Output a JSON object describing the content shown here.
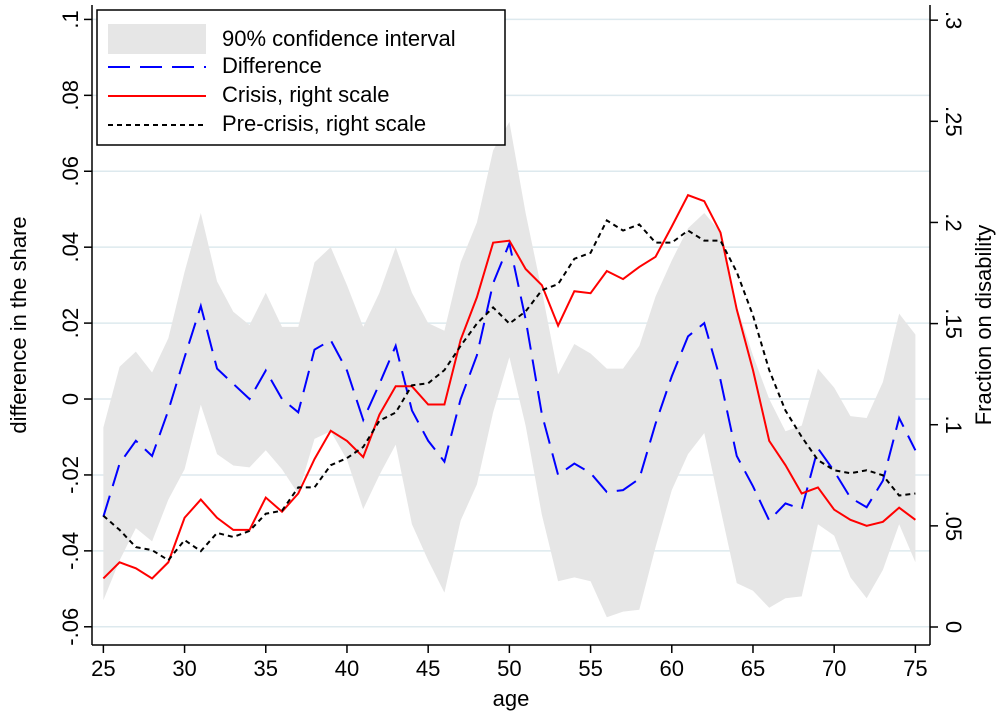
{
  "chart_data": {
    "type": "line",
    "xlabel": "age",
    "ylabel": "difference in the share",
    "y2label": "Fraction on disability",
    "ylabel_color": "#0000ff",
    "x": [
      25,
      26,
      27,
      28,
      29,
      30,
      31,
      32,
      33,
      34,
      35,
      36,
      37,
      38,
      39,
      40,
      41,
      42,
      43,
      44,
      45,
      46,
      47,
      48,
      49,
      50,
      51,
      52,
      53,
      54,
      55,
      56,
      57,
      58,
      59,
      60,
      61,
      62,
      63,
      64,
      65,
      66,
      67,
      68,
      69,
      70,
      71,
      72,
      73,
      74,
      75
    ],
    "xlim": [
      24.3,
      75.9
    ],
    "xticks": [
      25,
      30,
      35,
      40,
      45,
      50,
      55,
      60,
      65,
      70,
      75
    ],
    "ylim": [
      -0.0648,
      0.1038
    ],
    "yticks": [
      {
        "value": -0.06,
        "label": "-.06"
      },
      {
        "value": -0.04,
        "label": "-.04"
      },
      {
        "value": -0.02,
        "label": "-.02"
      },
      0,
      {
        "value": 0.02,
        "label": ".02"
      },
      {
        "value": 0.04,
        "label": ".04"
      },
      {
        "value": 0.06,
        "label": ".06"
      },
      {
        "value": 0.08,
        "label": ".08"
      },
      {
        "value": 0.1,
        "label": ".1"
      }
    ],
    "y2lim": [
      -0.0089,
      0.3075
    ],
    "y2ticks": [
      0,
      {
        "value": 0.05,
        "label": ".05"
      },
      {
        "value": 0.1,
        "label": ".1"
      },
      {
        "value": 0.15,
        "label": ".15"
      },
      {
        "value": 0.2,
        "label": ".2"
      },
      {
        "value": 0.25,
        "label": ".25"
      },
      {
        "value": 0.3,
        "label": ".3"
      }
    ],
    "grid": true,
    "band": {
      "name": "90% confidence interval",
      "color": "#e6e6e6",
      "upper": [
        -0.0075,
        0.0085,
        0.0125,
        0.007,
        0.016,
        0.0335,
        0.049,
        0.031,
        0.023,
        0.0195,
        0.028,
        0.019,
        0.019,
        0.036,
        0.04,
        0.03,
        0.019,
        0.028,
        0.04,
        0.028,
        0.02,
        0.018,
        0.036,
        0.0465,
        0.0655,
        0.073,
        0.049,
        0.0285,
        0.0065,
        0.0145,
        0.012,
        0.008,
        0.008,
        0.014,
        0.027,
        0.0365,
        0.045,
        0.049,
        0.044,
        0.0245,
        0.0115,
        0,
        -0.0085,
        -0.007,
        0.008,
        0.003,
        -0.0045,
        -0.005,
        0.0045,
        0.0225,
        0.017
      ],
      "lower": [
        -0.053,
        -0.0425,
        -0.034,
        -0.0375,
        -0.0265,
        -0.0185,
        -0.0015,
        -0.0145,
        -0.0175,
        -0.018,
        -0.0135,
        -0.0185,
        -0.025,
        -0.0105,
        -0.0085,
        -0.016,
        -0.029,
        -0.02,
        -0.012,
        -0.033,
        -0.0425,
        -0.051,
        -0.032,
        -0.0225,
        -0.0035,
        0.011,
        -0.007,
        -0.0305,
        -0.048,
        -0.047,
        -0.048,
        -0.0575,
        -0.056,
        -0.0555,
        -0.039,
        -0.024,
        -0.0145,
        -0.009,
        -0.029,
        -0.0485,
        -0.0505,
        -0.055,
        -0.0525,
        -0.052,
        -0.033,
        -0.036,
        -0.047,
        -0.0525,
        -0.045,
        -0.033,
        -0.043
      ]
    },
    "series": [
      {
        "name": "Difference",
        "color": "#0000ff",
        "dash": "long",
        "axis": "y",
        "values": [
          -0.031,
          -0.017,
          -0.011,
          -0.015,
          -0.003,
          0.011,
          0.0245,
          0.008,
          0.004,
          0,
          0.0075,
          0,
          -0.0035,
          0.013,
          0.0155,
          0.0075,
          -0.0055,
          0.004,
          0.014,
          -0.003,
          -0.011,
          -0.0165,
          0,
          0.0115,
          0.0305,
          0.041,
          0.021,
          -0.004,
          -0.02,
          -0.017,
          -0.0195,
          -0.0245,
          -0.024,
          -0.021,
          -0.0065,
          0.006,
          0.0165,
          0.02,
          0.005,
          -0.015,
          -0.023,
          -0.032,
          -0.0275,
          -0.029,
          -0.013,
          -0.019,
          -0.026,
          -0.0285,
          -0.0215,
          -0.005,
          -0.0135
        ]
      },
      {
        "name": "Crisis, right scale",
        "color": "#ff0000",
        "dash": "solid",
        "axis": "y2",
        "values": [
          0.024,
          0.032,
          0.029,
          0.024,
          0.032,
          0.054,
          0.063,
          0.054,
          0.048,
          0.048,
          0.064,
          0.057,
          0.066,
          0.083,
          0.097,
          0.092,
          0.084,
          0.105,
          0.119,
          0.119,
          0.11,
          0.11,
          0.142,
          0.163,
          0.19,
          0.191,
          0.177,
          0.169,
          0.149,
          0.166,
          0.165,
          0.176,
          0.172,
          0.178,
          0.183,
          0.198,
          0.2135,
          0.2105,
          0.195,
          0.157,
          0.127,
          0.092,
          0.08,
          0.066,
          0.069,
          0.058,
          0.053,
          0.05,
          0.052,
          0.059,
          0.053
        ]
      },
      {
        "name": "Pre-crisis, right scale",
        "color": "#000000",
        "dash": "short",
        "axis": "y2",
        "values": [
          0.055,
          0.048,
          0.0395,
          0.038,
          0.033,
          0.043,
          0.0375,
          0.0465,
          0.0445,
          0.0475,
          0.056,
          0.0575,
          0.069,
          0.069,
          0.08,
          0.0835,
          0.089,
          0.102,
          0.106,
          0.1195,
          0.1205,
          0.127,
          0.139,
          0.15,
          0.158,
          0.15,
          0.156,
          0.1665,
          0.1695,
          0.182,
          0.185,
          0.201,
          0.196,
          0.199,
          0.19,
          0.19,
          0.196,
          0.191,
          0.191,
          0.1755,
          0.154,
          0.127,
          0.107,
          0.094,
          0.0825,
          0.0775,
          0.076,
          0.0775,
          0.075,
          0.065,
          0.066
        ]
      }
    ]
  }
}
